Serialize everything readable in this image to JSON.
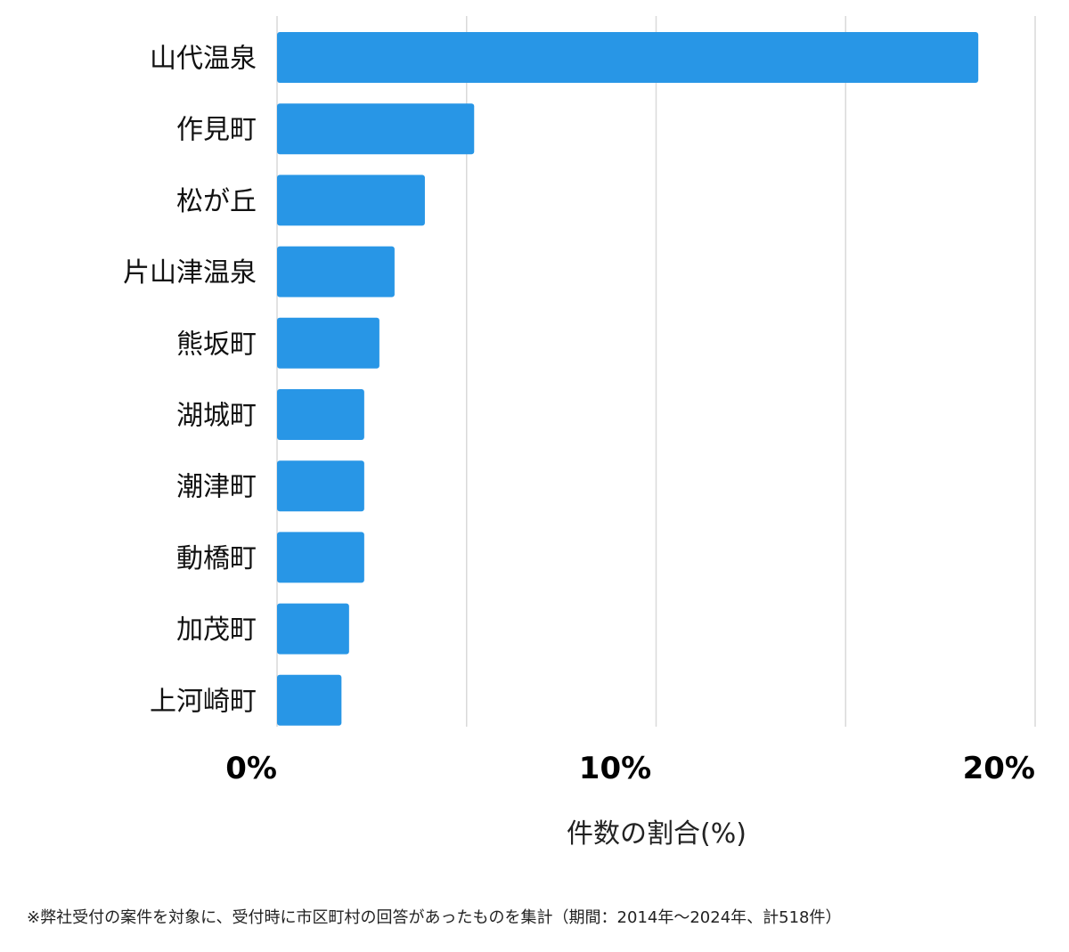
{
  "chart_data": {
    "type": "bar",
    "orientation": "horizontal",
    "categories": [
      "山代温泉",
      "作見町",
      "松が丘",
      "片山津温泉",
      "熊坂町",
      "湖城町",
      "潮津町",
      "動橋町",
      "加茂町",
      "上河崎町"
    ],
    "values": [
      18.5,
      5.2,
      3.9,
      3.1,
      2.7,
      2.3,
      2.3,
      2.3,
      1.9,
      1.7
    ],
    "xlim": [
      0,
      20
    ],
    "xticks": [
      0,
      10,
      20
    ],
    "xtick_labels": [
      "0%",
      "10%",
      "20%"
    ],
    "minor_gridlines": [
      5,
      15
    ],
    "grid": true,
    "xlabel": "件数の割合(%)",
    "ylabel": "",
    "title": "",
    "bar_color": "#2896e6",
    "grid_color": "#d9d9d9"
  },
  "footnote": "※弊社受付の案件を対象に、受付時に市区町村の回答があったものを集計（期間：2014年～2024年、計518件）"
}
